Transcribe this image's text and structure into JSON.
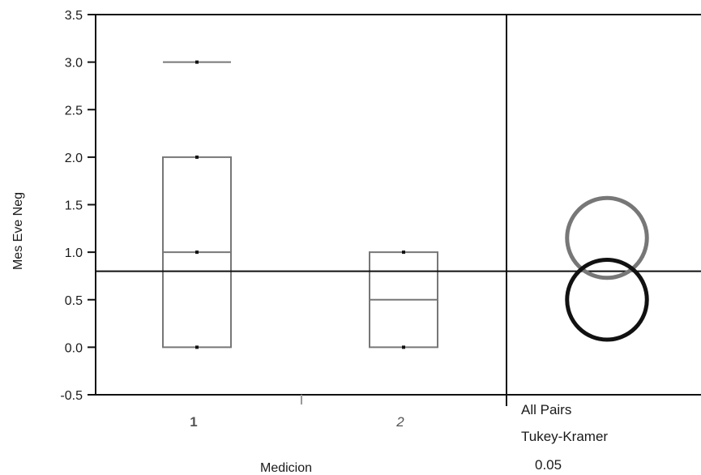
{
  "chart_data": {
    "type": "box",
    "ylabel": "Mes Eve Neg",
    "xlabel": "Medicion",
    "ylim": [
      -0.5,
      3.5
    ],
    "yticks": [
      "3.5",
      "3.0",
      "2.5",
      "2.0",
      "1.5",
      "1.0",
      "0.5",
      "0.0",
      "-0.5"
    ],
    "categories": [
      "1",
      "2"
    ],
    "category_styles": [
      "bold",
      "italic"
    ],
    "grand_mean": 0.8,
    "boxes": [
      {
        "category": "1",
        "q1": 0.0,
        "median": 1.0,
        "q3": 2.0,
        "max": 3.0,
        "points": [
          0.0,
          1.0,
          2.0,
          3.0
        ]
      },
      {
        "category": "2",
        "q1": 0.0,
        "median": 0.5,
        "q3": 1.0,
        "points": [
          0.0,
          1.0
        ]
      }
    ],
    "comparison_circles": {
      "labels": [
        "All Pairs",
        "Tukey-Kramer",
        "0.05"
      ],
      "circles": [
        {
          "category": "1",
          "center": 1.15,
          "radius": 0.42,
          "color": "#777777"
        },
        {
          "category": "2",
          "center": 0.5,
          "radius": 0.42,
          "color": "#111111"
        }
      ]
    },
    "colors": {
      "box": "#777777",
      "axis": "#111111",
      "point": "#111111"
    }
  }
}
